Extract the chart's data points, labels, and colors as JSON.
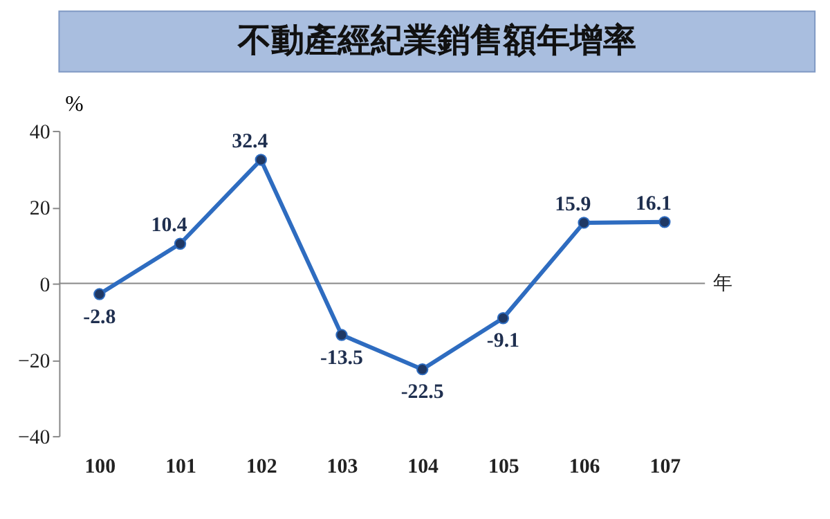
{
  "chart_data": {
    "type": "line",
    "title": "不動產經紀業銷售額年增率",
    "categories": [
      "100",
      "101",
      "102",
      "103",
      "104",
      "105",
      "106",
      "107"
    ],
    "series": [
      {
        "color": "#2e6cc0",
        "values": [
          -2.8,
          10.4,
          32.4,
          -13.5,
          -22.5,
          -9.1,
          15.9,
          16.1
        ]
      }
    ],
    "xlabel": "年",
    "ylabel": "%",
    "ylim": [
      -40,
      40
    ],
    "yticks": [
      -40,
      -20,
      0,
      20,
      40
    ],
    "marker": "circle",
    "line_style": "solid",
    "data_labels": true
  }
}
